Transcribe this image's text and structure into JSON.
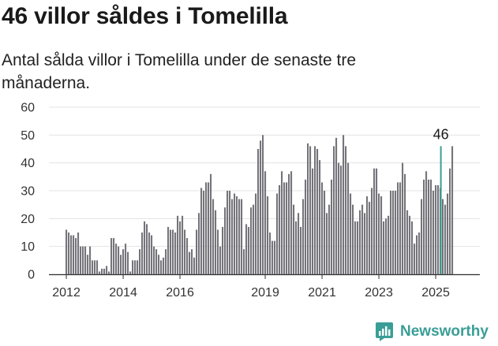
{
  "header": {
    "title": "46 villor såldes i Tomelilla",
    "subtitle": "Antal sålda villor i Tomelilla under de senaste tre månaderna."
  },
  "brand": {
    "name": "Newsworthy",
    "icon": "newsworthy-logo-icon",
    "color": "#3a9e96"
  },
  "chart_data": {
    "type": "bar",
    "title": "46 villor såldes i Tomelilla",
    "subtitle": "Antal sålda villor i Tomelilla under de senaste tre månaderna.",
    "xlabel": "",
    "ylabel": "",
    "ylim": [
      0,
      60
    ],
    "yticks": [
      0,
      10,
      20,
      30,
      40,
      50,
      60
    ],
    "xticks": [
      "2012",
      "2014",
      "2016",
      "2019",
      "2021",
      "2023",
      "2025"
    ],
    "grid": true,
    "bar_color": "#75747a",
    "highlight_color": "#3a9e96",
    "start_month": "2012-01",
    "highlight": {
      "month": "2025-03",
      "value": 46,
      "label": "46"
    },
    "values": [
      16,
      15,
      14,
      14,
      13,
      15,
      10,
      10,
      10,
      7,
      10,
      5,
      5,
      5,
      1,
      2,
      2,
      3,
      1,
      13,
      13,
      11,
      10,
      7,
      9,
      11,
      8,
      1,
      5,
      5,
      5,
      9,
      15,
      19,
      18,
      15,
      14,
      10,
      9,
      7,
      5,
      6,
      9,
      17,
      16,
      16,
      15,
      21,
      19,
      21,
      16,
      13,
      8,
      9,
      6,
      16,
      22,
      31,
      30,
      33,
      33,
      36,
      27,
      23,
      16,
      10,
      17,
      24,
      30,
      30,
      27,
      29,
      28,
      27,
      27,
      9,
      18,
      17,
      24,
      25,
      29,
      45,
      48,
      50,
      37,
      28,
      15,
      12,
      12,
      29,
      32,
      37,
      33,
      33,
      36,
      37,
      25,
      19,
      22,
      17,
      27,
      34,
      47,
      46,
      38,
      46,
      45,
      41,
      33,
      30,
      22,
      25,
      34,
      46,
      49,
      40,
      39,
      50,
      46,
      40,
      29,
      25,
      19,
      19,
      23,
      25,
      22,
      28,
      26,
      31,
      38,
      38,
      29,
      28,
      19,
      20,
      21,
      30,
      30,
      30,
      33,
      33,
      40,
      36,
      23,
      21,
      19,
      11,
      14,
      15,
      27,
      34,
      37,
      34,
      34,
      30,
      32,
      32,
      31,
      27,
      25,
      29,
      38,
      46
    ]
  }
}
